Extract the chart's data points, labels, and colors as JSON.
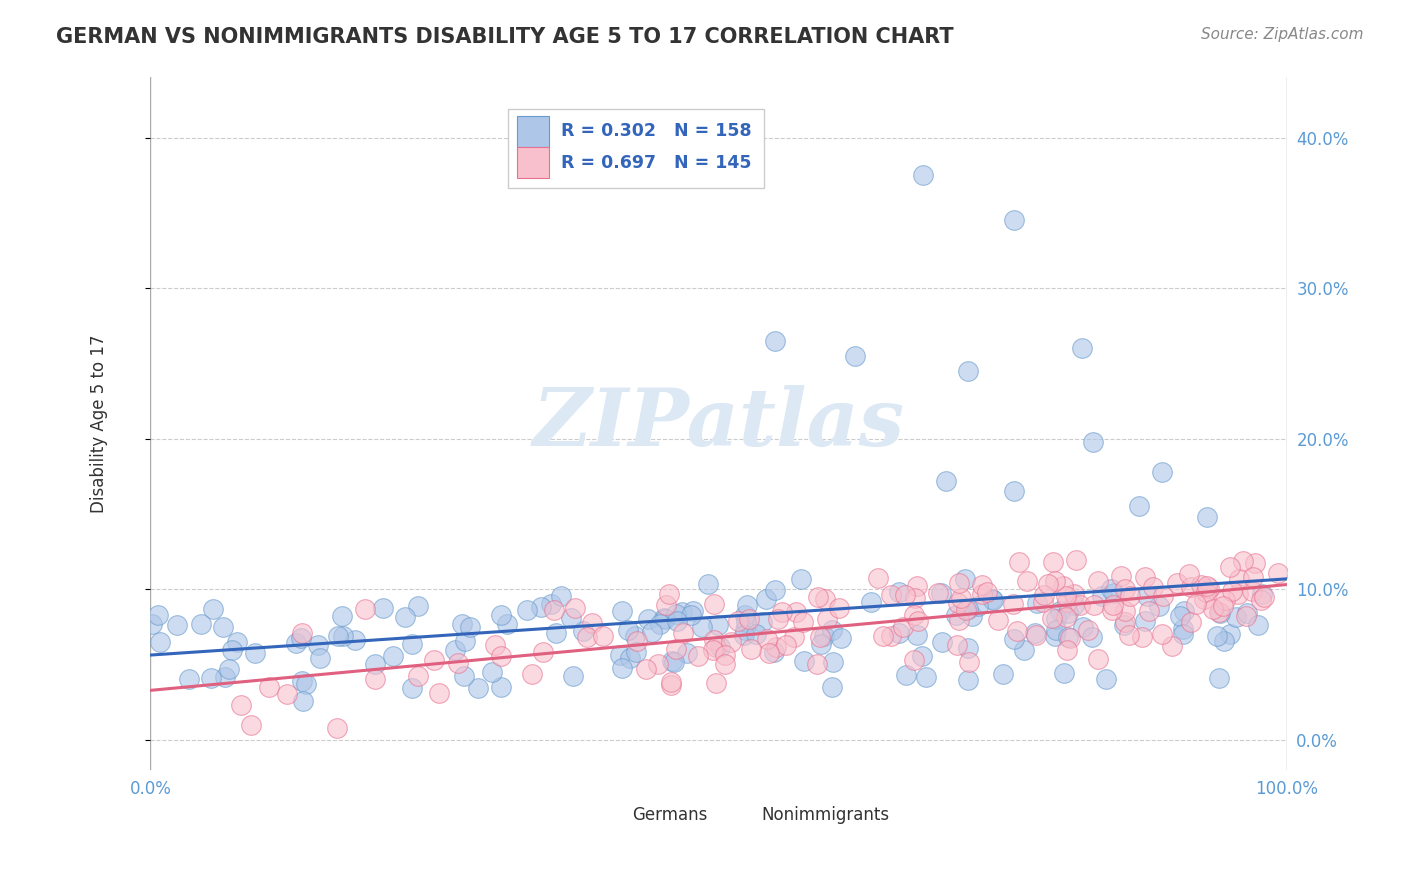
{
  "title": "GERMAN VS NONIMMIGRANTS DISABILITY AGE 5 TO 17 CORRELATION CHART",
  "source": "Source: ZipAtlas.com",
  "ylabel": "Disability Age 5 to 17",
  "blue_R": 0.302,
  "blue_N": 158,
  "pink_R": 0.697,
  "pink_N": 145,
  "blue_color": "#aec6e8",
  "blue_edge_color": "#6699cc",
  "pink_color": "#f8c0cc",
  "pink_edge_color": "#e87090",
  "blue_line_color": "#3366bb",
  "pink_line_color": "#e06080",
  "title_color": "#333333",
  "ylabel_color": "#333333",
  "axis_tick_color": "#5b9bd5",
  "watermark_color": "#dce8f4",
  "background_color": "#ffffff",
  "grid_color": "#cccccc",
  "xlim": [
    0.0,
    1.0
  ],
  "ylim": [
    -0.02,
    0.44
  ],
  "yticks": [
    0.0,
    0.1,
    0.2,
    0.3,
    0.4
  ],
  "ytick_labels": [
    "0.0%",
    "10.0%",
    "20.0%",
    "30.0%",
    "40.0%"
  ],
  "xtick_labels": [
    "0.0%",
    "100.0%"
  ],
  "legend_blue_text": "R = 0.302   N = 158",
  "legend_pink_text": "R = 0.697   N = 145",
  "bottom_legend": [
    "Germans",
    "Nonimmigrants"
  ]
}
